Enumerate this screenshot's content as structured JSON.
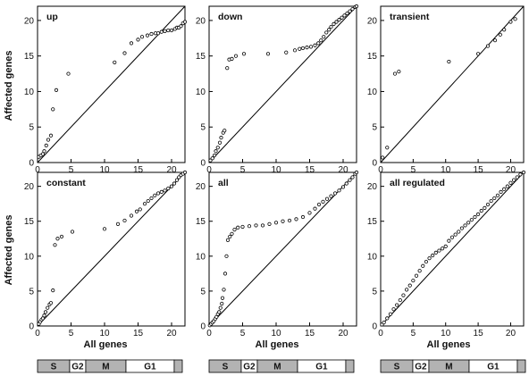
{
  "figure": {
    "ylabel": "Affected genes",
    "xlabel": "All genes",
    "bar_labels": [
      "S",
      "G2",
      "M",
      "G1"
    ]
  },
  "chart_data": [
    {
      "type": "scatter",
      "title": "up",
      "xlim": [
        0,
        22
      ],
      "ylim": [
        0,
        22
      ],
      "xticks": [
        0,
        5,
        10,
        15,
        20
      ],
      "yticks": [
        0,
        5,
        10,
        15,
        20
      ],
      "points": [
        [
          0.2,
          0.8
        ],
        [
          0.5,
          1.0
        ],
        [
          0.8,
          1.2
        ],
        [
          1.0,
          1.6
        ],
        [
          1.3,
          2.4
        ],
        [
          1.6,
          3.2
        ],
        [
          2.0,
          3.8
        ],
        [
          2.3,
          7.5
        ],
        [
          2.8,
          10.2
        ],
        [
          4.6,
          12.5
        ],
        [
          11.5,
          14.1
        ],
        [
          13.0,
          15.4
        ],
        [
          14.0,
          16.8
        ],
        [
          15.0,
          17.3
        ],
        [
          15.6,
          17.7
        ],
        [
          16.4,
          17.9
        ],
        [
          17.0,
          18.1
        ],
        [
          17.6,
          18.2
        ],
        [
          18.0,
          18.2
        ],
        [
          18.5,
          18.4
        ],
        [
          19.0,
          18.5
        ],
        [
          19.5,
          18.6
        ],
        [
          20.0,
          18.6
        ],
        [
          20.5,
          18.8
        ],
        [
          20.8,
          19.0
        ],
        [
          21.1,
          19.0
        ],
        [
          21.4,
          19.2
        ],
        [
          21.7,
          19.6
        ],
        [
          22.0,
          19.8
        ]
      ]
    },
    {
      "type": "scatter",
      "title": "down",
      "xlim": [
        0,
        22
      ],
      "ylim": [
        0,
        22
      ],
      "xticks": [
        0,
        5,
        10,
        15,
        20
      ],
      "yticks": [
        0,
        5,
        10,
        15,
        20
      ],
      "points": [
        [
          0.2,
          0.3
        ],
        [
          0.5,
          0.6
        ],
        [
          0.8,
          1.0
        ],
        [
          1.0,
          1.6
        ],
        [
          1.3,
          2.1
        ],
        [
          1.6,
          2.8
        ],
        [
          1.8,
          3.5
        ],
        [
          2.1,
          4.2
        ],
        [
          2.3,
          4.5
        ],
        [
          2.7,
          13.3
        ],
        [
          3.0,
          14.5
        ],
        [
          3.4,
          14.6
        ],
        [
          4.0,
          15.0
        ],
        [
          5.2,
          15.3
        ],
        [
          8.8,
          15.3
        ],
        [
          11.5,
          15.5
        ],
        [
          12.8,
          15.8
        ],
        [
          13.5,
          16.0
        ],
        [
          14.0,
          16.1
        ],
        [
          14.6,
          16.2
        ],
        [
          15.2,
          16.3
        ],
        [
          15.8,
          16.5
        ],
        [
          16.3,
          16.8
        ],
        [
          16.7,
          17.2
        ],
        [
          17.1,
          17.7
        ],
        [
          17.5,
          18.3
        ],
        [
          17.9,
          18.7
        ],
        [
          18.2,
          19.1
        ],
        [
          18.6,
          19.5
        ],
        [
          19.0,
          19.8
        ],
        [
          19.4,
          20.1
        ],
        [
          19.8,
          20.4
        ],
        [
          20.2,
          20.7
        ],
        [
          20.6,
          21.0
        ],
        [
          21.0,
          21.3
        ],
        [
          21.4,
          21.6
        ],
        [
          21.8,
          21.9
        ],
        [
          22.0,
          22.0
        ]
      ]
    },
    {
      "type": "scatter",
      "title": "transient",
      "xlim": [
        0,
        22
      ],
      "ylim": [
        0,
        22
      ],
      "xticks": [
        0,
        5,
        10,
        15,
        20
      ],
      "yticks": [
        0,
        5,
        10,
        15,
        20
      ],
      "points": [
        [
          0.3,
          0.7
        ],
        [
          1.0,
          2.1
        ],
        [
          2.2,
          12.5
        ],
        [
          2.8,
          12.8
        ],
        [
          10.5,
          14.2
        ],
        [
          15.0,
          15.3
        ],
        [
          16.5,
          16.4
        ],
        [
          17.6,
          17.2
        ],
        [
          18.4,
          18.0
        ],
        [
          19.0,
          18.7
        ],
        [
          20.0,
          19.8
        ],
        [
          20.7,
          20.2
        ]
      ]
    },
    {
      "type": "scatter",
      "title": "constant",
      "xlim": [
        0,
        22
      ],
      "ylim": [
        0,
        22
      ],
      "xticks": [
        0,
        5,
        10,
        15,
        20
      ],
      "yticks": [
        0,
        5,
        10,
        15,
        20
      ],
      "points": [
        [
          0.2,
          0.3
        ],
        [
          0.4,
          0.6
        ],
        [
          0.6,
          0.9
        ],
        [
          0.8,
          1.1
        ],
        [
          1.0,
          1.5
        ],
        [
          1.2,
          2.0
        ],
        [
          1.5,
          2.6
        ],
        [
          1.8,
          3.1
        ],
        [
          2.0,
          3.3
        ],
        [
          2.3,
          5.1
        ],
        [
          2.6,
          11.6
        ],
        [
          3.0,
          12.5
        ],
        [
          3.6,
          12.8
        ],
        [
          5.2,
          13.5
        ],
        [
          10.0,
          13.9
        ],
        [
          12.0,
          14.6
        ],
        [
          13.0,
          15.1
        ],
        [
          14.0,
          15.8
        ],
        [
          14.8,
          16.4
        ],
        [
          15.3,
          16.7
        ],
        [
          16.0,
          17.5
        ],
        [
          16.5,
          17.9
        ],
        [
          17.0,
          18.3
        ],
        [
          17.5,
          18.7
        ],
        [
          18.0,
          19.0
        ],
        [
          18.5,
          19.2
        ],
        [
          19.0,
          19.4
        ],
        [
          19.5,
          19.7
        ],
        [
          20.0,
          20.0
        ],
        [
          20.4,
          20.4
        ],
        [
          20.8,
          20.9
        ],
        [
          21.1,
          21.3
        ],
        [
          21.4,
          21.6
        ],
        [
          21.7,
          21.8
        ],
        [
          22.0,
          22.0
        ]
      ]
    },
    {
      "type": "scatter",
      "title": "all",
      "xlim": [
        0,
        22
      ],
      "ylim": [
        0,
        22
      ],
      "xticks": [
        0,
        5,
        10,
        15,
        20
      ],
      "yticks": [
        0,
        5,
        10,
        15,
        20
      ],
      "points": [
        [
          0.1,
          0.1
        ],
        [
          0.3,
          0.3
        ],
        [
          0.5,
          0.5
        ],
        [
          0.7,
          0.7
        ],
        [
          0.9,
          1.0
        ],
        [
          1.1,
          1.3
        ],
        [
          1.3,
          1.7
        ],
        [
          1.5,
          2.0
        ],
        [
          1.7,
          2.6
        ],
        [
          1.9,
          3.2
        ],
        [
          2.0,
          4.0
        ],
        [
          2.2,
          5.2
        ],
        [
          2.4,
          7.5
        ],
        [
          2.6,
          10.0
        ],
        [
          2.8,
          12.3
        ],
        [
          3.1,
          12.8
        ],
        [
          3.4,
          13.2
        ],
        [
          3.8,
          13.8
        ],
        [
          4.3,
          14.1
        ],
        [
          5.0,
          14.2
        ],
        [
          6.0,
          14.3
        ],
        [
          7.0,
          14.4
        ],
        [
          8.0,
          14.4
        ],
        [
          9.0,
          14.6
        ],
        [
          10.0,
          14.8
        ],
        [
          11.0,
          15.0
        ],
        [
          12.0,
          15.1
        ],
        [
          13.0,
          15.3
        ],
        [
          14.0,
          15.6
        ],
        [
          15.0,
          16.2
        ],
        [
          15.8,
          16.8
        ],
        [
          16.4,
          17.4
        ],
        [
          17.0,
          17.8
        ],
        [
          17.6,
          18.2
        ],
        [
          18.2,
          18.6
        ],
        [
          18.8,
          19.0
        ],
        [
          19.4,
          19.4
        ],
        [
          20.0,
          19.9
        ],
        [
          20.5,
          20.4
        ],
        [
          21.0,
          20.9
        ],
        [
          21.4,
          21.3
        ],
        [
          21.8,
          21.8
        ],
        [
          22.0,
          22.0
        ]
      ]
    },
    {
      "type": "scatter",
      "title": "all regulated",
      "xlim": [
        0,
        22
      ],
      "ylim": [
        0,
        22
      ],
      "xticks": [
        0,
        5,
        10,
        15,
        20
      ],
      "yticks": [
        0,
        5,
        10,
        15,
        20
      ],
      "points": [
        [
          0.2,
          0.2
        ],
        [
          0.5,
          0.5
        ],
        [
          1.0,
          1.1
        ],
        [
          1.5,
          1.7
        ],
        [
          2.0,
          2.4
        ],
        [
          2.5,
          3.0
        ],
        [
          3.0,
          3.7
        ],
        [
          3.5,
          4.4
        ],
        [
          4.0,
          5.2
        ],
        [
          4.5,
          5.8
        ],
        [
          5.0,
          6.5
        ],
        [
          5.5,
          7.2
        ],
        [
          6.0,
          7.9
        ],
        [
          6.5,
          8.6
        ],
        [
          7.0,
          9.2
        ],
        [
          7.5,
          9.7
        ],
        [
          8.0,
          10.1
        ],
        [
          8.5,
          10.5
        ],
        [
          9.0,
          10.8
        ],
        [
          9.5,
          11.1
        ],
        [
          10.0,
          11.4
        ],
        [
          10.5,
          12.2
        ],
        [
          11.0,
          12.7
        ],
        [
          11.5,
          13.1
        ],
        [
          12.0,
          13.5
        ],
        [
          12.5,
          14.0
        ],
        [
          13.0,
          14.4
        ],
        [
          13.5,
          14.8
        ],
        [
          14.0,
          15.2
        ],
        [
          14.5,
          15.6
        ],
        [
          15.0,
          16.0
        ],
        [
          15.5,
          16.5
        ],
        [
          16.0,
          16.9
        ],
        [
          16.5,
          17.4
        ],
        [
          17.0,
          17.9
        ],
        [
          17.5,
          18.3
        ],
        [
          18.0,
          18.7
        ],
        [
          18.5,
          19.2
        ],
        [
          19.0,
          19.6
        ],
        [
          19.5,
          20.0
        ],
        [
          20.0,
          20.5
        ],
        [
          20.5,
          20.9
        ],
        [
          21.0,
          21.3
        ],
        [
          21.5,
          21.7
        ],
        [
          22.0,
          22.0
        ]
      ]
    }
  ],
  "bars": {
    "segments": [
      {
        "label": "S",
        "from": 0.0,
        "to": 0.222,
        "color": "#b3b3b3"
      },
      {
        "label": "G2",
        "from": 0.222,
        "to": 0.333,
        "color": "#ffffff"
      },
      {
        "label": "M",
        "from": 0.333,
        "to": 0.611,
        "color": "#b3b3b3"
      },
      {
        "label": "G1",
        "from": 0.611,
        "to": 0.944,
        "color": "#ffffff"
      },
      {
        "label": "",
        "from": 0.944,
        "to": 1.0,
        "color": "#b3b3b3"
      }
    ]
  }
}
